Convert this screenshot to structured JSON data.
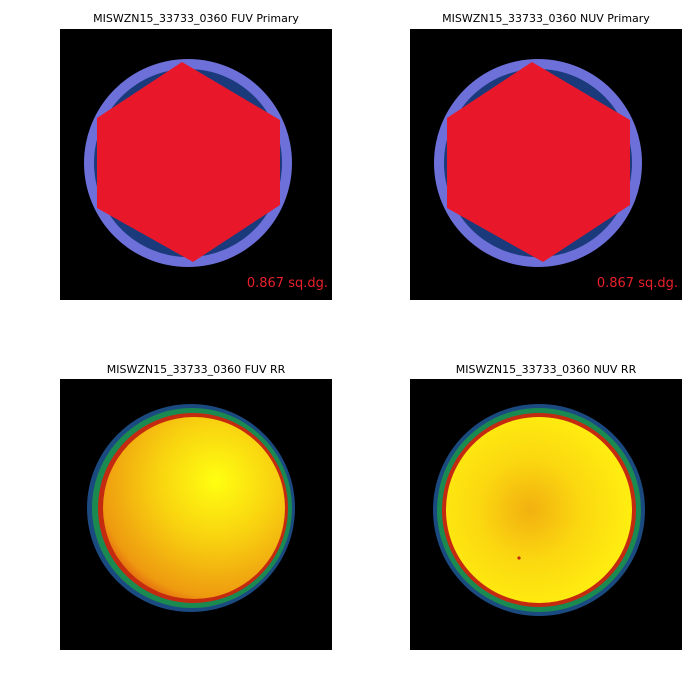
{
  "panels": [
    {
      "title": "MISWZN15_33733_0360 FUV Primary",
      "area": "0.867 sq.dg."
    },
    {
      "title": "MISWZN15_33733_0360 NUV Primary",
      "area": "0.867 sq.dg."
    },
    {
      "title": "MISWZN15_33733_0360 FUV RR"
    },
    {
      "title": "MISWZN15_33733_0360 NUV RR"
    }
  ]
}
